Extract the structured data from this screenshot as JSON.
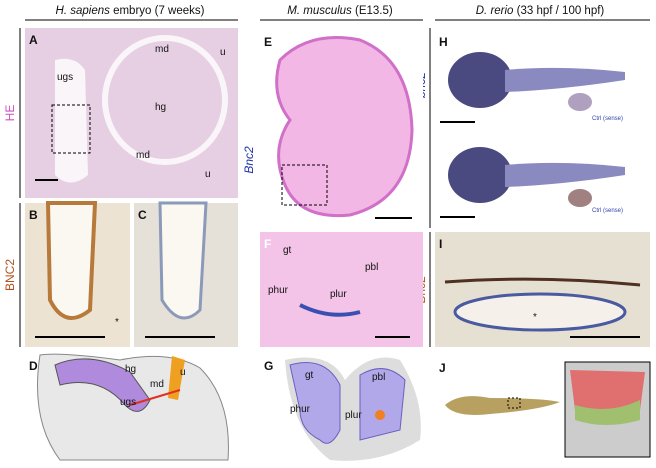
{
  "columns": [
    {
      "species": "H. sapiens",
      "stage": "embryo (7 weeks)"
    },
    {
      "species": "M. musculus",
      "stage": "(E13.5)"
    },
    {
      "species": "D. rerio",
      "stage": "(33 hpf / 100 hpf)"
    }
  ],
  "stain_labels": [
    "HE",
    "BNC2",
    "Bnc2",
    "bnc2",
    "Bnc2"
  ],
  "panels": [
    {
      "letter": "A",
      "labels": [
        "md",
        "u",
        "ugs",
        "hg",
        "md",
        "u"
      ]
    },
    {
      "letter": "B",
      "labels": [
        "*"
      ]
    },
    {
      "letter": "C"
    },
    {
      "letter": "D",
      "labels": [
        "hg",
        "md",
        "u",
        "ugs"
      ]
    },
    {
      "letter": "E"
    },
    {
      "letter": "F",
      "labels": [
        "gt",
        "pbl",
        "phur",
        "plur"
      ]
    },
    {
      "letter": "G",
      "labels": [
        "gt",
        "pbl",
        "phur",
        "plur"
      ]
    },
    {
      "letter": "H",
      "labels": [
        "Ctrl (sense)",
        "Ctrl (sense)"
      ]
    },
    {
      "letter": "I",
      "labels": [
        "*"
      ]
    },
    {
      "letter": "J"
    }
  ]
}
